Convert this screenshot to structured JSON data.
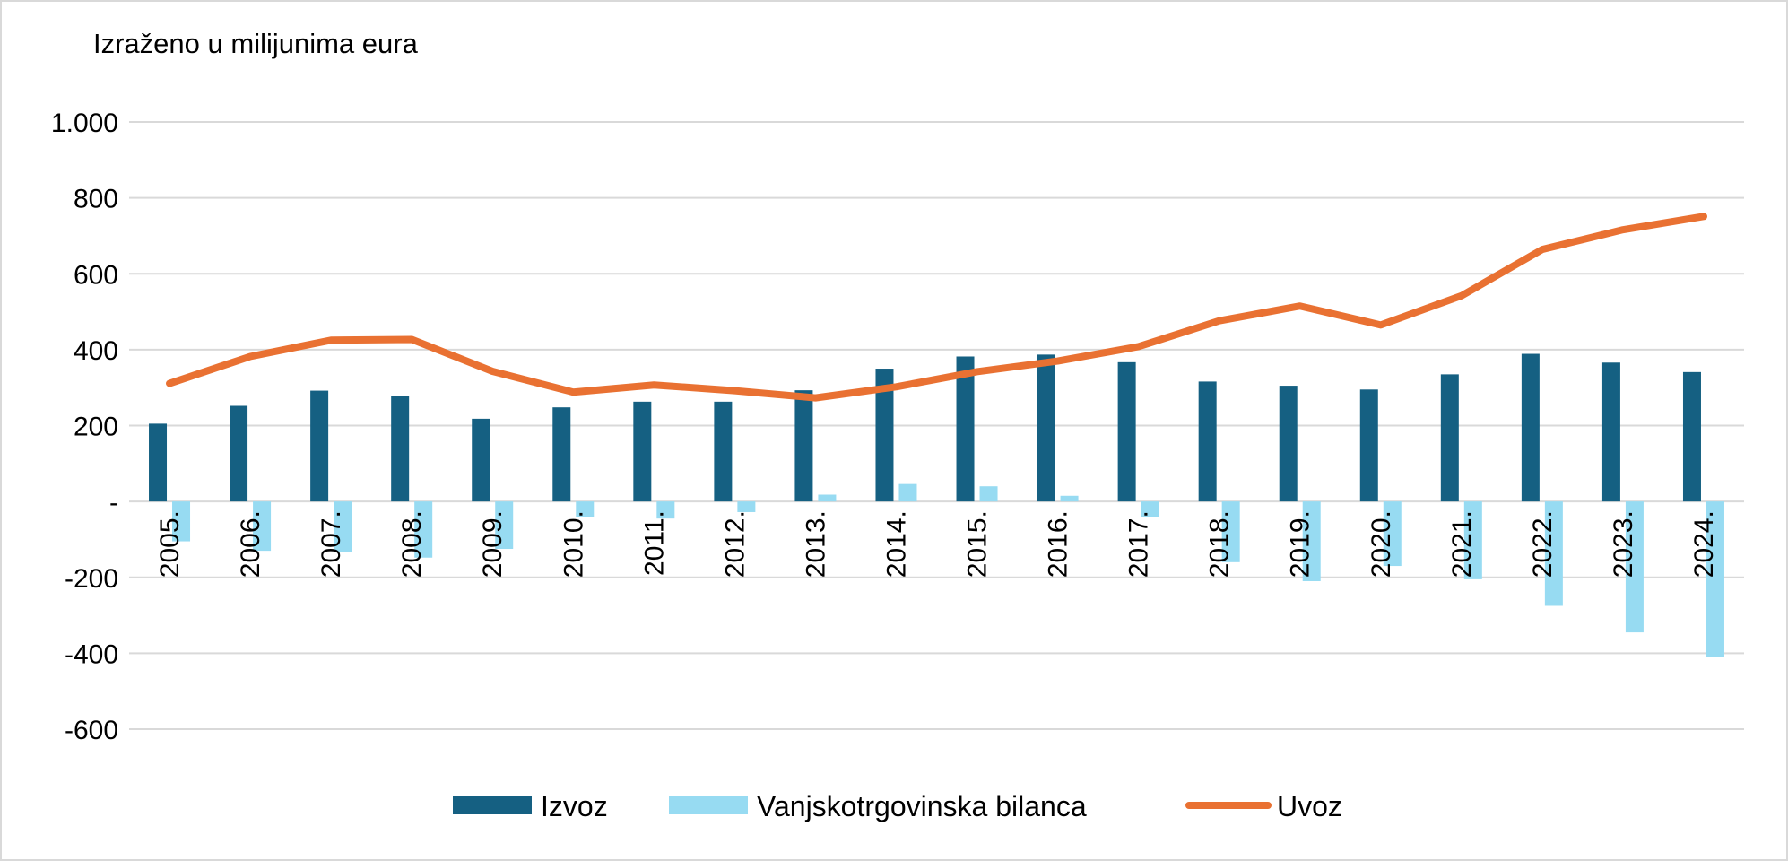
{
  "chart_data": {
    "type": "bar",
    "unit_label": "Izraženo u milijunima eura",
    "categories": [
      "2005.",
      "2006.",
      "2007.",
      "2008.",
      "2009.",
      "2010.",
      "2011.",
      "2012.",
      "2013.",
      "2014.",
      "2015.",
      "2016.",
      "2017.",
      "2018.",
      "2019.",
      "2020.",
      "2021.",
      "2022.",
      "2023.",
      "2024."
    ],
    "series": [
      {
        "name": "Izvoz",
        "type": "bar",
        "color": "#156082",
        "values": [
          205,
          252,
          292,
          278,
          218,
          248,
          263,
          263,
          293,
          350,
          382,
          387,
          367,
          316,
          305,
          295,
          335,
          389,
          366,
          341
        ]
      },
      {
        "name": "Vanjskotrgovinska bilanca",
        "type": "bar",
        "color": "#97dbf2",
        "values": [
          -105,
          -130,
          -133,
          -148,
          -125,
          -40,
          -45,
          -28,
          18,
          46,
          40,
          15,
          -40,
          -160,
          -210,
          -170,
          -205,
          -275,
          -345,
          -410
        ]
      },
      {
        "name": "Uvoz",
        "type": "line",
        "color": "#e97132",
        "values": [
          311,
          382,
          425,
          427,
          343,
          288,
          307,
          292,
          273,
          302,
          342,
          370,
          408,
          476,
          515,
          465,
          542,
          664,
          716,
          751
        ]
      }
    ],
    "ylim": [
      -600,
      1000
    ],
    "yticks": [
      1000,
      800,
      600,
      400,
      200,
      0,
      -200,
      -400,
      -600
    ],
    "ytick_labels": [
      "1.000",
      "800",
      "600",
      "400",
      "200",
      "-",
      "-200",
      "-400",
      "-600"
    ],
    "grid": true,
    "legend_position": "bottom"
  }
}
